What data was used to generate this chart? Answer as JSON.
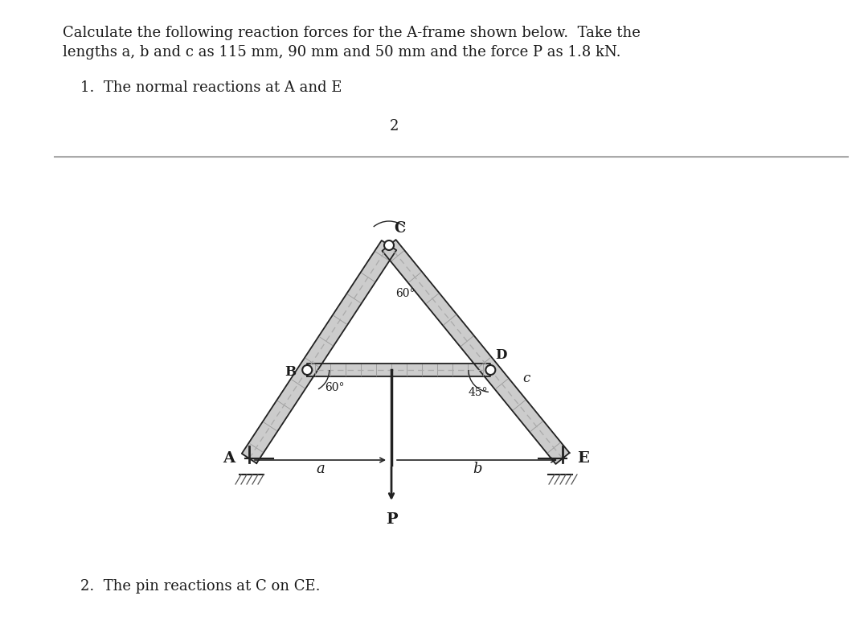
{
  "bg_color": "#ffffff",
  "header_text_line1": "Calculate the following reaction forces for the A-frame shown below.  Take the",
  "header_text_line2": "lengths a, b and c as 115 mm, 90 mm and 50 mm and the force P as 1.8 kN.",
  "item1_text": "1.  The normal reactions at A and E",
  "page_number": "2",
  "item2_text": "2.  The pin reactions at C on CE.",
  "text_color": "#1a1a1a",
  "dark_color": "#222222",
  "gray_color": "#888888",
  "fill_color": "#cccccc",
  "divider_color": "#aaaaaa"
}
